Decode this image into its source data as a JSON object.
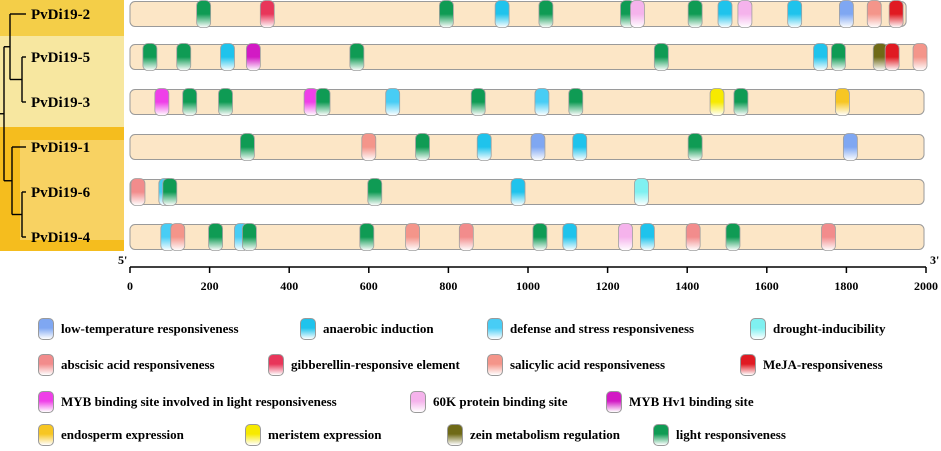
{
  "genes": [
    {
      "name": "PvDi19-2",
      "length": 1950,
      "elements": [
        [
          185,
          "light"
        ],
        [
          345,
          "gibberellin"
        ],
        [
          795,
          "light"
        ],
        [
          935,
          "anaerobic"
        ],
        [
          1045,
          "light"
        ],
        [
          1250,
          "light"
        ],
        [
          1275,
          "k60"
        ],
        [
          1420,
          "light"
        ],
        [
          1495,
          "anaerobic"
        ],
        [
          1545,
          "k60"
        ],
        [
          1670,
          "anaerobic"
        ],
        [
          1800,
          "lowtemp"
        ],
        [
          1870,
          "salicylic"
        ],
        [
          1925,
          "meja"
        ]
      ]
    },
    {
      "name": "PvDi19-5",
      "length": 1995,
      "elements": [
        [
          50,
          "light"
        ],
        [
          135,
          "light"
        ],
        [
          245,
          "anaerobic"
        ],
        [
          310,
          "mybhv1"
        ],
        [
          570,
          "light"
        ],
        [
          1335,
          "light"
        ],
        [
          1735,
          "anaerobic"
        ],
        [
          1780,
          "light"
        ],
        [
          1885,
          "zein"
        ],
        [
          1915,
          "meja"
        ],
        [
          1985,
          "salicylic"
        ]
      ]
    },
    {
      "name": "PvDi19-3",
      "length": 1995,
      "elements": [
        [
          80,
          "myb"
        ],
        [
          150,
          "light"
        ],
        [
          240,
          "light"
        ],
        [
          455,
          "myb"
        ],
        [
          485,
          "light"
        ],
        [
          660,
          "defense"
        ],
        [
          875,
          "light"
        ],
        [
          1035,
          "defense"
        ],
        [
          1120,
          "light"
        ],
        [
          1475,
          "meristem"
        ],
        [
          1535,
          "light"
        ],
        [
          1790,
          "endosperm"
        ]
      ]
    },
    {
      "name": "PvDi19-1",
      "length": 1995,
      "elements": [
        [
          295,
          "light"
        ],
        [
          600,
          "salicylic"
        ],
        [
          735,
          "light"
        ],
        [
          890,
          "anaerobic"
        ],
        [
          1025,
          "lowtemp"
        ],
        [
          1130,
          "anaerobic"
        ],
        [
          1420,
          "light"
        ],
        [
          1810,
          "lowtemp"
        ]
      ]
    },
    {
      "name": "PvDi19-6",
      "length": 1995,
      "elements": [
        [
          20,
          "absciscic"
        ],
        [
          90,
          "defense"
        ],
        [
          100,
          "light"
        ],
        [
          615,
          "light"
        ],
        [
          975,
          "anaerobic"
        ],
        [
          1285,
          "drought"
        ]
      ]
    },
    {
      "name": "PvDi19-4",
      "length": 1995,
      "elements": [
        [
          95,
          "defense"
        ],
        [
          120,
          "salicylic"
        ],
        [
          215,
          "light"
        ],
        [
          280,
          "defense"
        ],
        [
          300,
          "light"
        ],
        [
          595,
          "light"
        ],
        [
          710,
          "salicylic"
        ],
        [
          845,
          "absciscic"
        ],
        [
          1030,
          "light"
        ],
        [
          1105,
          "anaerobic"
        ],
        [
          1245,
          "k60"
        ],
        [
          1300,
          "anaerobic"
        ],
        [
          1415,
          "absciscic"
        ],
        [
          1515,
          "light"
        ],
        [
          1755,
          "absciscic"
        ]
      ]
    }
  ],
  "axis": {
    "min": 0,
    "max": 2000,
    "ticks": [
      "0",
      "200",
      "400",
      "600",
      "800",
      "1000",
      "1200",
      "1400",
      "1600",
      "1800",
      "2000"
    ],
    "left_end": "5'",
    "right_end": "3'"
  },
  "legend": [
    {
      "key": "lowtemp",
      "label": "low-temperature responsiveness",
      "color": "#7fa7f2"
    },
    {
      "key": "anaerobic",
      "label": "anaerobic induction",
      "color": "#1fc3ec"
    },
    {
      "key": "defense",
      "label": "defense and stress responsiveness",
      "color": "#48cdf5"
    },
    {
      "key": "drought",
      "label": "drought-inducibility",
      "color": "#7ff0f0"
    },
    {
      "key": "absciscic",
      "label": "abscisic acid responsiveness",
      "color": "#f28c8c"
    },
    {
      "key": "gibberellin",
      "label": "gibberellin-responsive element",
      "color": "#e8365a"
    },
    {
      "key": "salicylic",
      "label": "salicylic acid responsiveness",
      "color": "#f4958a"
    },
    {
      "key": "meja",
      "label": "MeJA-responsiveness",
      "color": "#e01a22"
    },
    {
      "key": "myb",
      "label": "MYB binding site involved in light responsiveness",
      "color": "#ef3fe8"
    },
    {
      "key": "k60",
      "label": "60K protein binding site",
      "color": "#f5b3ec"
    },
    {
      "key": "mybhv1",
      "label": "MYB Hv1 binding site",
      "color": "#d21ac4"
    },
    {
      "key": "endosperm",
      "label": "endosperm expression",
      "color": "#f7c623"
    },
    {
      "key": "meristem",
      "label": "meristem expression",
      "color": "#f7ea00"
    },
    {
      "key": "zein",
      "label": "zein metabolism regulation",
      "color": "#6f6a17"
    },
    {
      "key": "light",
      "label": "light responsiveness",
      "color": "#0f9b54"
    }
  ]
}
